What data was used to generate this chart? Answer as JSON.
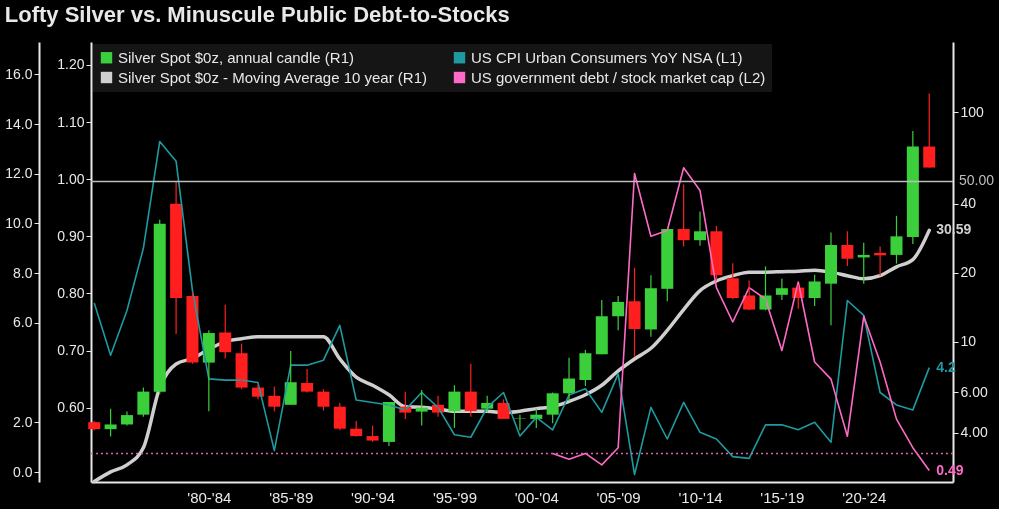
{
  "chart_data": {
    "type": "candlestick",
    "title": "Lofty Silver vs. Minuscule Public Debt-to-Stocks",
    "categories": [
      null,
      null,
      null,
      null,
      null,
      null,
      null,
      "'80-'84",
      null,
      null,
      null,
      null,
      "'85-'89",
      null,
      null,
      null,
      null,
      "'90-'94",
      null,
      null,
      null,
      null,
      "'95-'99",
      null,
      null,
      null,
      null,
      "'00-'04",
      null,
      null,
      null,
      null,
      "'05-'09",
      null,
      null,
      null,
      null,
      "'10-'14",
      null,
      null,
      null,
      null,
      "'15-'19",
      null,
      null,
      null,
      null,
      "'20-'24",
      null,
      null,
      null,
      null
    ],
    "ylim": [
      -0.4,
      17.3
    ],
    "yticks": [
      {
        "value": 0,
        "label": "0.0"
      },
      {
        "value": 2,
        "label": "2.0"
      },
      {
        "value": 6,
        "label": "6.0"
      },
      {
        "value": 8,
        "label": "8.0"
      },
      {
        "value": 10,
        "label": "10.0"
      },
      {
        "value": 12,
        "label": "12.0"
      },
      {
        "value": 14,
        "label": "14.0"
      },
      {
        "value": 16,
        "label": "16.0"
      }
    ],
    "y2lim": [
      0.47,
      1.24
    ],
    "y2ticks": [
      {
        "value": 0.6,
        "label": "0.60"
      },
      {
        "value": 0.7,
        "label": "0.70"
      },
      {
        "value": 0.8,
        "label": "0.80"
      },
      {
        "value": 0.9,
        "label": "0.90"
      },
      {
        "value": 1.0,
        "label": "1.00"
      },
      {
        "value": 1.1,
        "label": "1.10"
      },
      {
        "value": 1.2,
        "label": "1.20"
      }
    ],
    "y3lim": [
      2.44,
      203
    ],
    "y3ticks": [
      {
        "value": 4,
        "label": "4.00"
      },
      {
        "value": 6,
        "label": "6.00"
      },
      10,
      20,
      40,
      100
    ],
    "log": "y3",
    "grid": false,
    "legend": "top left",
    "marker": "none",
    "ref_lines": [
      {
        "axis": "y3",
        "value": 50,
        "label": "50.00",
        "color": "#bdbdbd",
        "line_style": "solid"
      },
      {
        "axis": "y2",
        "value": 0.52,
        "color": "#e060b0",
        "line_style": "dotted"
      }
    ],
    "series": [
      {
        "name": "Silver Spot $0z, annual candle (R1)",
        "axis": "y3",
        "color": "#3ccf3c",
        "ohlc": [
          [
            4.45,
            4.5,
            4.1,
            4.15
          ],
          [
            4.15,
            5.1,
            3.85,
            4.35
          ],
          [
            4.35,
            4.95,
            4.3,
            4.78
          ],
          [
            4.8,
            6.3,
            4.7,
            6.05
          ],
          [
            6.05,
            34,
            5.9,
            32.7
          ],
          [
            40,
            49.7,
            10.8,
            15.5
          ],
          [
            15.8,
            16.5,
            8.0,
            8.1
          ],
          [
            8.1,
            11.2,
            4.97,
            10.9
          ],
          [
            10.96,
            14.5,
            8.45,
            8.99
          ],
          [
            8.9,
            9.8,
            6.2,
            6.3
          ],
          [
            6.3,
            6.5,
            5.6,
            5.75
          ],
          [
            5.8,
            6.35,
            4.97,
            5.2
          ],
          [
            5.3,
            9.1,
            5.3,
            6.65
          ],
          [
            6.6,
            7.6,
            6.0,
            6.05
          ],
          [
            6.05,
            6.2,
            5.0,
            5.2
          ],
          [
            5.2,
            5.4,
            4.1,
            4.17
          ],
          [
            4.17,
            4.5,
            3.85,
            3.87
          ],
          [
            3.87,
            4.3,
            3.65,
            3.7
          ],
          [
            3.65,
            5.45,
            3.5,
            5.45
          ],
          [
            5.2,
            6.05,
            4.6,
            4.9
          ],
          [
            4.95,
            6.15,
            4.3,
            5.15
          ],
          [
            5.3,
            5.8,
            4.7,
            4.9
          ],
          [
            4.97,
            6.45,
            4.2,
            6.05
          ],
          [
            6.05,
            8.0,
            4.7,
            4.97
          ],
          [
            5.1,
            5.8,
            4.9,
            5.4
          ],
          [
            5.4,
            5.6,
            4.6,
            4.6
          ],
          [
            4.6,
            4.8,
            4.1,
            4.62
          ],
          [
            4.6,
            5.1,
            4.2,
            4.8
          ],
          [
            4.8,
            6.0,
            4.4,
            5.95
          ],
          [
            5.95,
            8.5,
            5.5,
            6.9
          ],
          [
            6.8,
            9.2,
            6.4,
            8.9
          ],
          [
            8.8,
            15.2,
            8.8,
            12.9
          ],
          [
            12.9,
            15.8,
            11.2,
            14.9
          ],
          [
            15,
            21,
            8.6,
            11.35
          ],
          [
            11.3,
            19.5,
            10.5,
            17.1
          ],
          [
            17,
            31,
            15,
            31
          ],
          [
            31,
            48.5,
            26,
            27.7
          ],
          [
            27.7,
            37,
            26.2,
            30.3
          ],
          [
            30.3,
            32,
            18.5,
            19.5
          ],
          [
            18.9,
            22,
            15.3,
            15.5
          ],
          [
            15.9,
            18.5,
            13.7,
            13.8
          ],
          [
            13.8,
            21.3,
            13.7,
            15.9
          ],
          [
            16,
            18.8,
            15.2,
            17.1
          ],
          [
            17.2,
            17.7,
            13.9,
            15.5
          ],
          [
            15.5,
            19.6,
            14.3,
            18.3
          ],
          [
            17.9,
            29.9,
            11.8,
            26.4
          ],
          [
            26.4,
            30.3,
            21.4,
            23
          ],
          [
            23.3,
            27,
            17.9,
            23.9
          ],
          [
            24.4,
            26,
            19.4,
            23.8
          ],
          [
            23.9,
            35.4,
            21.9,
            28.8
          ],
          [
            28.6,
            83,
            26.7,
            71
          ],
          [
            71,
            121,
            57.5,
            57.5
          ]
        ],
        "colors": [
          "#ff1f1f",
          "#3ccf3c",
          "#3ccf3c",
          "#3ccf3c",
          "#3ccf3c",
          "#ff1f1f",
          "#ff1f1f",
          "#3ccf3c",
          "#ff1f1f",
          "#ff1f1f",
          "#ff1f1f",
          "#ff1f1f",
          "#3ccf3c",
          "#ff1f1f",
          "#ff1f1f",
          "#ff1f1f",
          "#ff1f1f",
          "#ff1f1f",
          "#3ccf3c",
          "#ff1f1f",
          "#3ccf3c",
          "#ff1f1f",
          "#3ccf3c",
          "#ff1f1f",
          "#3ccf3c",
          "#ff1f1f",
          "#3ccf3c",
          "#3ccf3c",
          "#3ccf3c",
          "#3ccf3c",
          "#3ccf3c",
          "#3ccf3c",
          "#3ccf3c",
          "#ff1f1f",
          "#3ccf3c",
          "#3ccf3c",
          "#ff1f1f",
          "#3ccf3c",
          "#ff1f1f",
          "#ff1f1f",
          "#ff1f1f",
          "#3ccf3c",
          "#3ccf3c",
          "#ff1f1f",
          "#3ccf3c",
          "#3ccf3c",
          "#ff1f1f",
          "#3ccf3c",
          "#ff1f1f",
          "#3ccf3c",
          "#3ccf3c",
          "#ff1f1f"
        ]
      },
      {
        "name": "Silver Spot $0z - Moving Average 10 year (R1)",
        "type": "area",
        "axis": "y3",
        "color": "#cfcfcf",
        "values": [
          2.45,
          2.7,
          2.9,
          3.44,
          6.3,
          7.99,
          8.45,
          9.25,
          10,
          10.3,
          10.5,
          10.5,
          10.5,
          10.5,
          10.5,
          8.4,
          7.0,
          6.45,
          5.86,
          5.2,
          5.17,
          5.08,
          4.97,
          4.97,
          4.97,
          4.9,
          4.97,
          5.1,
          5.2,
          5.48,
          5.86,
          6.45,
          7.45,
          8.4,
          9.35,
          11.2,
          13.8,
          16.7,
          18.4,
          19.4,
          20.1,
          20.1,
          20.2,
          20.3,
          20.5,
          20.1,
          19.4,
          18.8,
          19.4,
          21.2,
          22.8,
          30.59
        ],
        "value_labels": [
          null,
          null,
          null,
          null,
          null,
          null,
          null,
          null,
          null,
          null,
          null,
          null,
          null,
          null,
          null,
          null,
          null,
          null,
          null,
          null,
          null,
          null,
          null,
          null,
          null,
          null,
          null,
          null,
          null,
          null,
          null,
          null,
          null,
          null,
          null,
          null,
          null,
          null,
          null,
          null,
          null,
          null,
          null,
          null,
          null,
          null,
          null,
          null,
          null,
          null,
          null,
          "30.59"
        ]
      },
      {
        "name": "US CPI Urban Consumers YoY NSA (L1)",
        "type": "line",
        "axis": "y",
        "color": "#1e9aa0",
        "values": [
          6.8,
          4.7,
          6.5,
          9.0,
          13.3,
          12.5,
          7.3,
          3.75,
          3.7,
          3.7,
          3.6,
          0.86,
          4.3,
          4.3,
          4.5,
          5.9,
          2.9,
          2.8,
          2.7,
          2.5,
          3.2,
          2.6,
          1.5,
          1.4,
          2.6,
          3.2,
          1.45,
          2.2,
          1.7,
          3.1,
          3.35,
          2.4,
          3.95,
          -0.1,
          2.6,
          1.33,
          2.8,
          1.6,
          1.33,
          0.62,
          0.55,
          1.9,
          1.9,
          1.7,
          2.0,
          1.2,
          6.9,
          6.3,
          3.2,
          2.7,
          2.5,
          4.2
        ],
        "value_labels": [
          null,
          null,
          null,
          null,
          null,
          null,
          null,
          null,
          null,
          null,
          null,
          null,
          null,
          null,
          null,
          null,
          null,
          null,
          null,
          null,
          null,
          null,
          null,
          null,
          null,
          null,
          null,
          null,
          null,
          null,
          null,
          null,
          null,
          null,
          null,
          null,
          null,
          null,
          null,
          null,
          null,
          null,
          null,
          null,
          null,
          null,
          null,
          null,
          null,
          null,
          null,
          "4.2"
        ]
      },
      {
        "name": "US government debt / stock market cap (L2)",
        "type": "line",
        "axis": "y2",
        "color": "#ff69c8",
        "values": [
          null,
          null,
          null,
          null,
          null,
          null,
          null,
          null,
          null,
          null,
          null,
          null,
          null,
          null,
          null,
          null,
          null,
          null,
          null,
          null,
          null,
          null,
          null,
          null,
          null,
          null,
          null,
          null,
          0.52,
          0.51,
          0.52,
          0.5,
          0.53,
          1.01,
          0.9,
          0.91,
          1.02,
          0.98,
          0.81,
          0.75,
          0.81,
          0.79,
          0.7,
          0.82,
          0.68,
          0.65,
          0.55,
          0.76,
          0.68,
          0.58,
          0.53,
          0.49
        ],
        "value_labels": [
          null,
          null,
          null,
          null,
          null,
          null,
          null,
          null,
          null,
          null,
          null,
          null,
          null,
          null,
          null,
          null,
          null,
          null,
          null,
          null,
          null,
          null,
          null,
          null,
          null,
          null,
          null,
          null,
          null,
          null,
          null,
          null,
          null,
          null,
          null,
          null,
          null,
          null,
          null,
          null,
          null,
          null,
          null,
          null,
          null,
          null,
          null,
          null,
          null,
          null,
          null,
          "0.49"
        ]
      }
    ]
  }
}
